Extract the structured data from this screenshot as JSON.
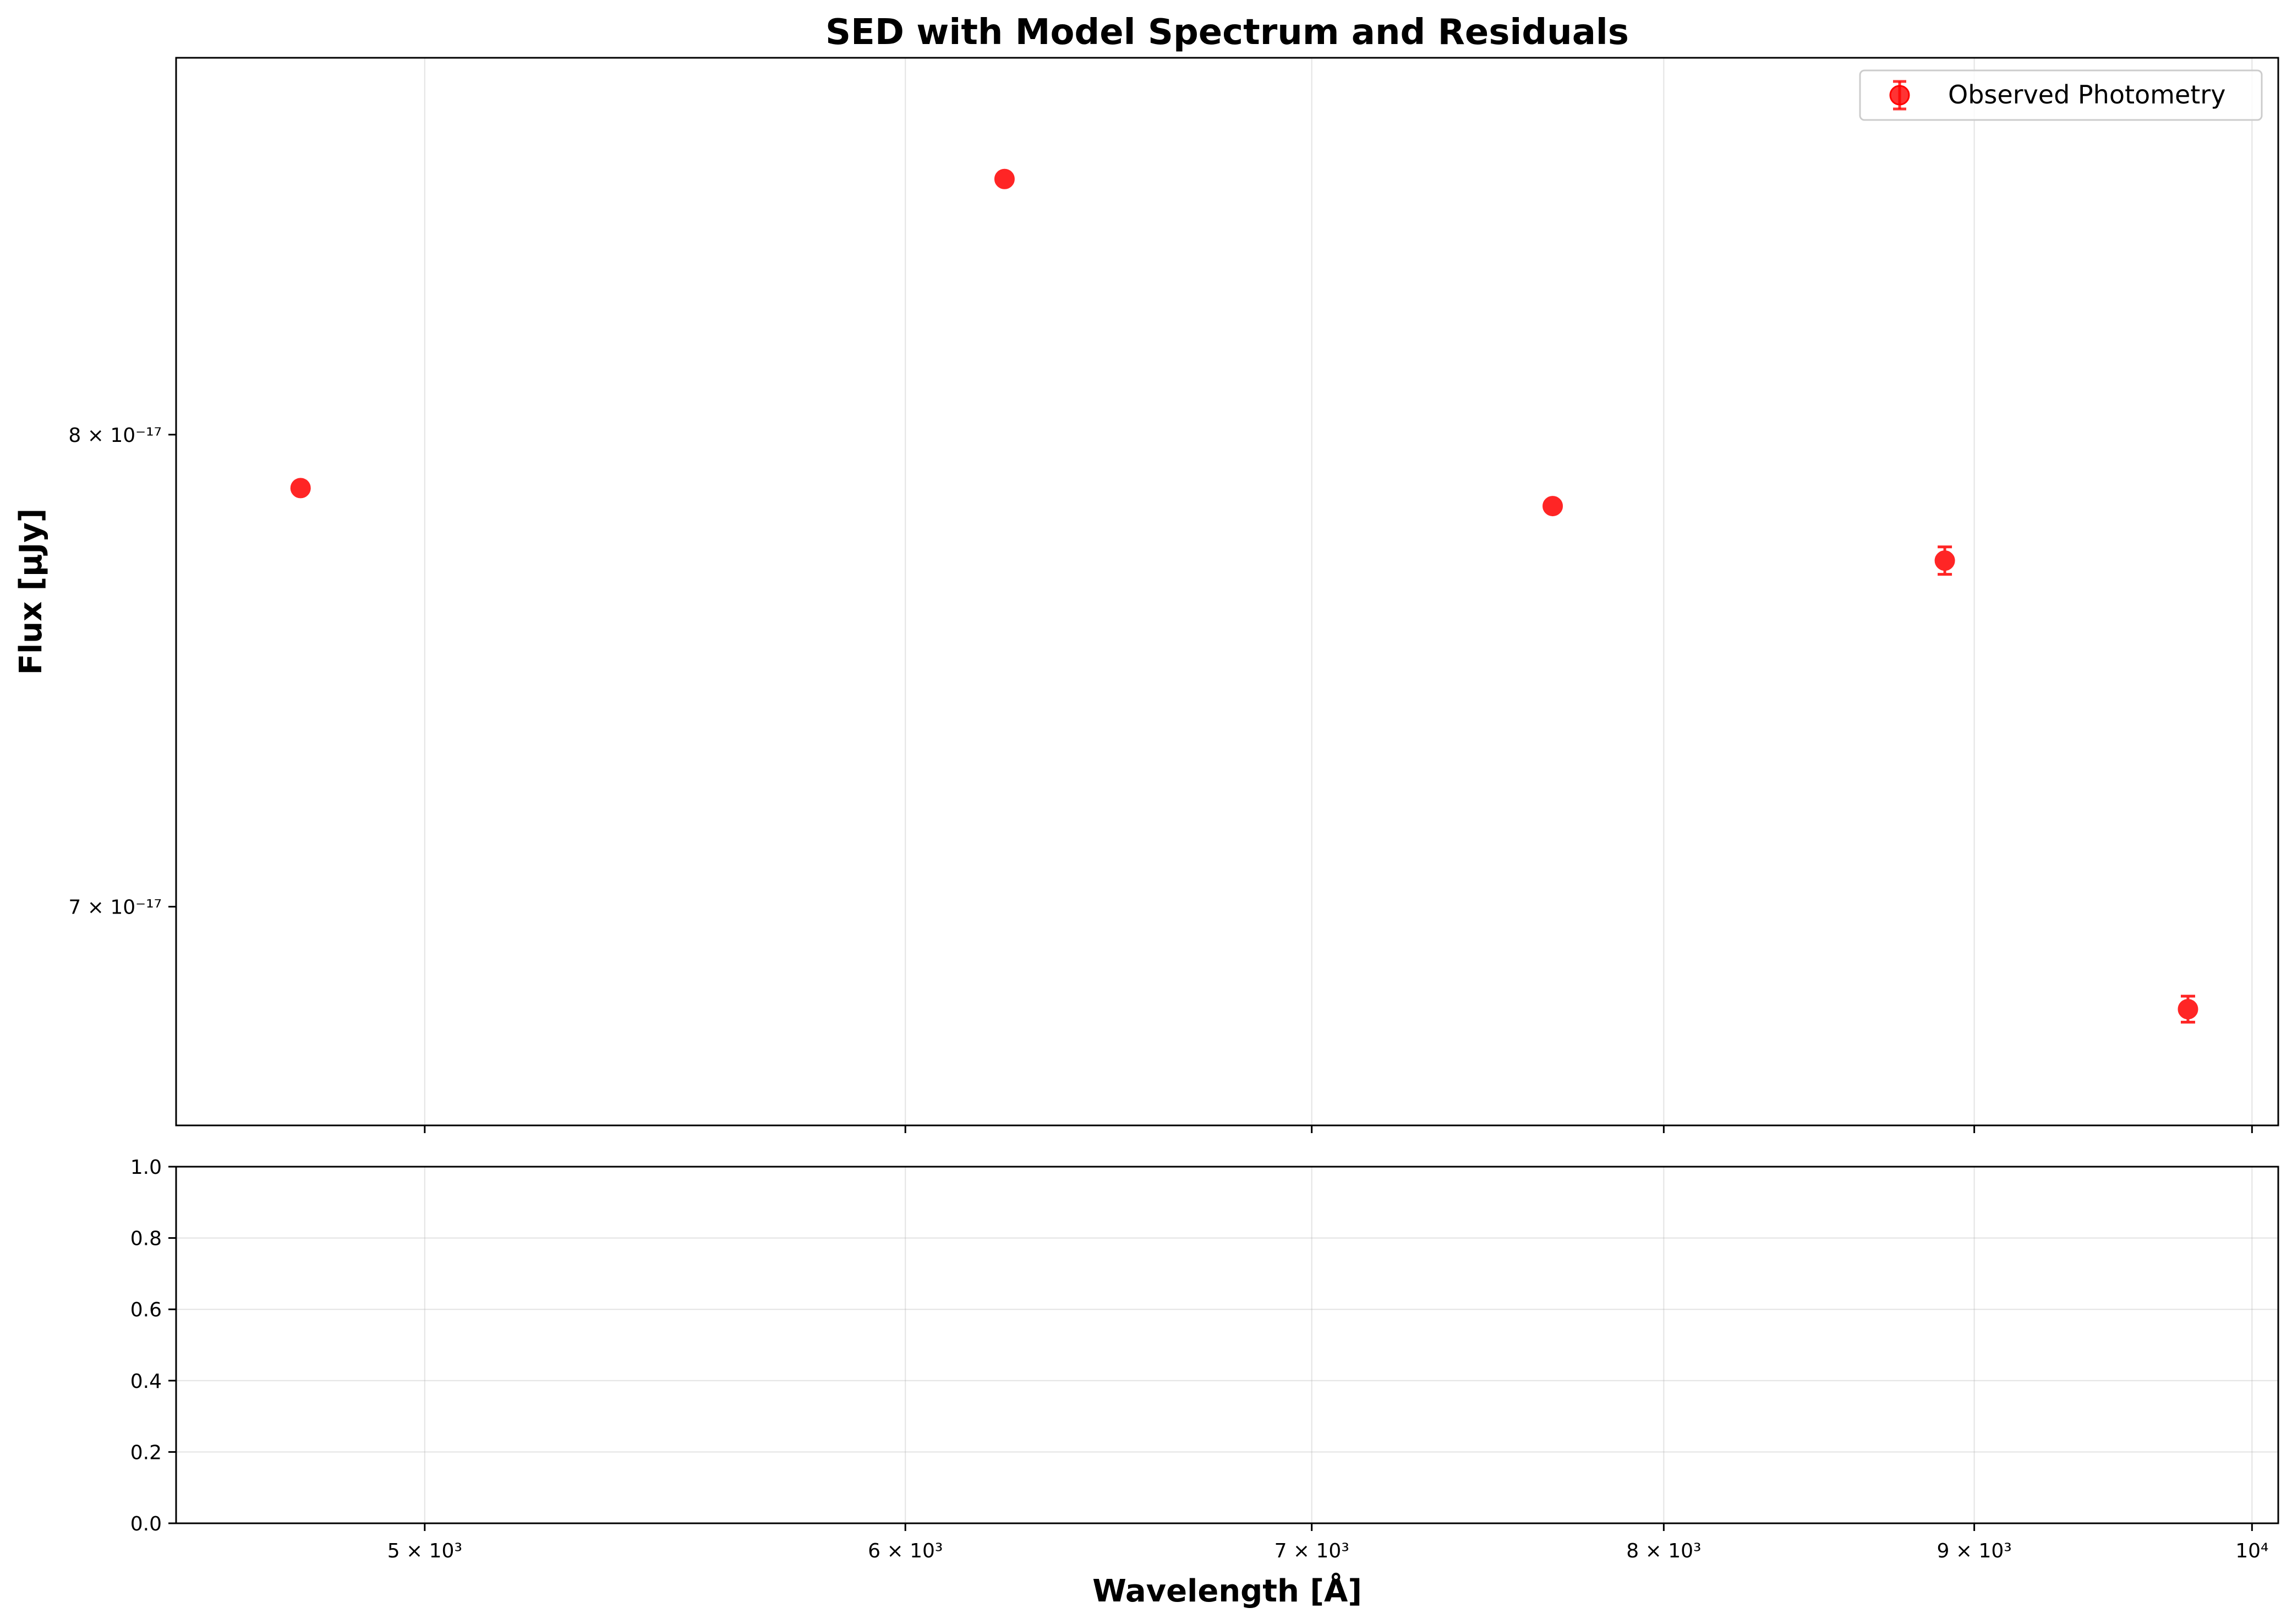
{
  "chart_data": {
    "type": "scatter",
    "title": "SED with Model Spectrum and Residuals",
    "xlabel": "Wavelength [Å]",
    "ylabel": "Flux [μJy]",
    "xscale": "log",
    "yscale": "log",
    "xlim": [
      4550,
      10100
    ],
    "ylim": [
      6.58e-17,
      8.9e-17
    ],
    "x_ticks": [
      {
        "value": 5000,
        "label": "5 × 10³"
      },
      {
        "value": 6000,
        "label": "6 × 10³"
      },
      {
        "value": 7000,
        "label": "7 × 10³"
      },
      {
        "value": 8000,
        "label": "8 × 10³"
      },
      {
        "value": 9000,
        "label": "9 × 10³"
      },
      {
        "value": 10000,
        "label": "10⁴"
      }
    ],
    "y_ticks": [
      {
        "value": 8e-17,
        "label": "8 × 10⁻¹⁷"
      },
      {
        "value": 7e-17,
        "label": "7 × 10⁻¹⁷"
      }
    ],
    "series": [
      {
        "name": "Observed Photometry",
        "color": "#ff0000",
        "marker": "circle",
        "x": [
          4770,
          6230,
          7670,
          8900,
          9760
        ],
        "y": [
          7.88e-17,
          8.6e-17,
          7.84e-17,
          7.72e-17,
          6.8e-17
        ],
        "yerr": [
          1.2e-19,
          1e-19,
          1.2e-19,
          3e-19,
          2.5e-19
        ]
      }
    ],
    "legend": {
      "position": "upper-right",
      "entries": [
        "Observed Photometry"
      ]
    },
    "grid": true,
    "residual_panel": {
      "ylim": [
        0,
        1
      ],
      "y_ticks": [
        "0.0",
        "0.2",
        "0.4",
        "0.6",
        "0.8",
        "1.0"
      ],
      "grid": true
    }
  }
}
